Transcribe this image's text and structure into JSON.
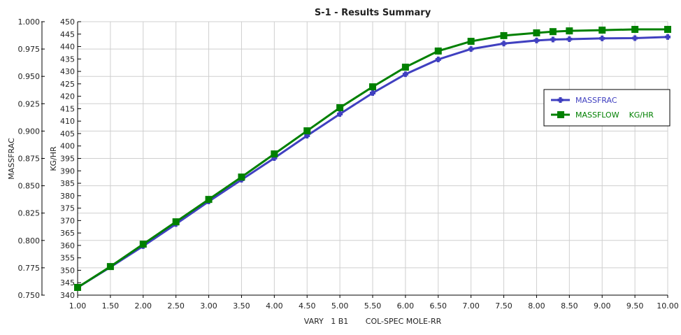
{
  "chart_data": {
    "type": "line",
    "title": "S-1 - Results Summary",
    "xlabel": "VARY   1 B1       COL-SPEC MOLE-RR",
    "ylabel_left": "MASSFRAC",
    "ylabel_right": "KG/HR",
    "xlim": [
      1,
      10
    ],
    "ylim_left": [
      0.75,
      1.0
    ],
    "ylim_second": [
      340,
      450
    ],
    "x_ticks": [
      "1.00",
      "1.50",
      "2.00",
      "2.50",
      "3.00",
      "3.50",
      "4.00",
      "4.50",
      "5.00",
      "5.50",
      "6.00",
      "6.50",
      "7.00",
      "7.50",
      "8.00",
      "8.50",
      "9.00",
      "9.50",
      "10.00"
    ],
    "y_ticks_left": [
      "0.750",
      "0.775",
      "0.800",
      "0.825",
      "0.850",
      "0.875",
      "0.900",
      "0.925",
      "0.950",
      "0.975",
      "1.000"
    ],
    "y_ticks_second": [
      "340",
      "345",
      "350",
      "355",
      "360",
      "365",
      "370",
      "375",
      "380",
      "385",
      "390",
      "395",
      "400",
      "405",
      "410",
      "415",
      "420",
      "425",
      "430",
      "435",
      "440",
      "445",
      "450"
    ],
    "grid": true,
    "legend_position": "right",
    "x": [
      1,
      1.5,
      2,
      2.5,
      3,
      3.5,
      4,
      4.5,
      5,
      5.5,
      6,
      6.5,
      7,
      7.5,
      8,
      8.25,
      8.5,
      9,
      9.5,
      10
    ],
    "series": [
      {
        "name": "MASSFRAC",
        "axis": "left",
        "color": "#4040c0",
        "marker": "plus",
        "values": [
          0.757,
          0.7756,
          0.7948,
          0.815,
          0.8357,
          0.8555,
          0.8753,
          0.8958,
          0.9156,
          0.9348,
          0.952,
          0.9655,
          0.975,
          0.98,
          0.9828,
          0.9837,
          0.984,
          0.9847,
          0.985,
          0.986
        ]
      },
      {
        "name": "MASSFLOW    KG/HR",
        "axis": "second",
        "color": "#008000",
        "marker": "square",
        "values": [
          343.1,
          351.5,
          360.5,
          369.5,
          378.5,
          387.5,
          396.8,
          406.1,
          415.4,
          423.8,
          431.7,
          438.2,
          442.1,
          444.4,
          445.5,
          446,
          446.3,
          446.6,
          446.9,
          446.9
        ]
      }
    ]
  }
}
